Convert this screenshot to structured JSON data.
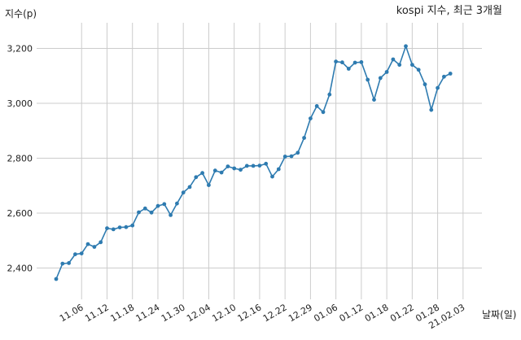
{
  "chart_data": {
    "type": "line",
    "title": "kospi 지수, 최근 3개월",
    "xlabel": "날짜(일)",
    "ylabel": "지수(p)",
    "ylim": [
      2330,
      3250
    ],
    "yticks": [
      2400,
      2600,
      2800,
      3000,
      3200
    ],
    "ytick_labels": [
      "2,400",
      "2,600",
      "2,800",
      "3,000",
      "3,200"
    ],
    "xtick_labels": [
      "11.06",
      "11.12",
      "11.18",
      "11.24",
      "11.30",
      "12.04",
      "12.10",
      "12.16",
      "12.22",
      "12.29",
      "01.06",
      "01.12",
      "01.18",
      "01.22",
      "01.28",
      "21.02.03"
    ],
    "xtick_index": [
      4,
      8,
      12,
      16,
      20,
      24,
      28,
      32,
      36,
      40,
      44,
      48,
      52,
      56,
      60,
      64
    ],
    "grid": true,
    "line_color": "#2e7bb0",
    "series": [
      {
        "values": [
          2360,
          2416,
          2418,
          2450,
          2453,
          2487,
          2477,
          2494,
          2545,
          2541,
          2548,
          2549,
          2555,
          2603,
          2617,
          2602,
          2626,
          2633,
          2593,
          2635,
          2675,
          2695,
          2731,
          2746,
          2702,
          2755,
          2748,
          2770,
          2763,
          2758,
          2772,
          2772,
          2773,
          2780,
          2733,
          2760,
          2806,
          2807,
          2820,
          2874,
          2945,
          2990,
          2968,
          3032,
          3152,
          3149,
          3126,
          3148,
          3150,
          3086,
          3013,
          3092,
          3114,
          3160,
          3140,
          3208,
          3140,
          3122,
          3069,
          2976,
          3056,
          3097,
          3108
        ]
      }
    ]
  }
}
